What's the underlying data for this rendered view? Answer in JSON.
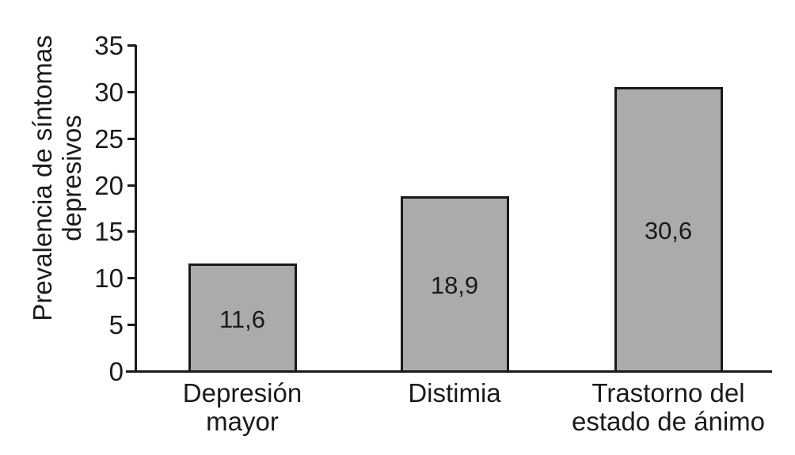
{
  "chart_data": {
    "type": "bar",
    "title": "",
    "xlabel": "",
    "ylabel": "Prevalencia de síntomas depresivos",
    "ylabel_lines": [
      "Prevalencia de síntomas",
      "depresivos"
    ],
    "categories": [
      "Depresión mayor",
      "Distimia",
      "Trastorno del estado de ánimo"
    ],
    "category_lines": [
      [
        "Depresión",
        "mayor"
      ],
      [
        "Distimia"
      ],
      [
        "Trastorno del",
        "estado de ánimo"
      ]
    ],
    "values": [
      11.6,
      18.9,
      30.6
    ],
    "value_labels": [
      "11,6",
      "18,9",
      "30,6"
    ],
    "yticks": [
      0,
      5,
      10,
      15,
      20,
      25,
      30,
      35
    ],
    "ylim": [
      0,
      35
    ],
    "grid": false,
    "legend": null,
    "colors": {
      "bar_fill": "#ababab",
      "bar_border": "#1a1a1a",
      "axis": "#1a1a1a",
      "text": "#1a1a1a",
      "background": "#ffffff"
    }
  }
}
